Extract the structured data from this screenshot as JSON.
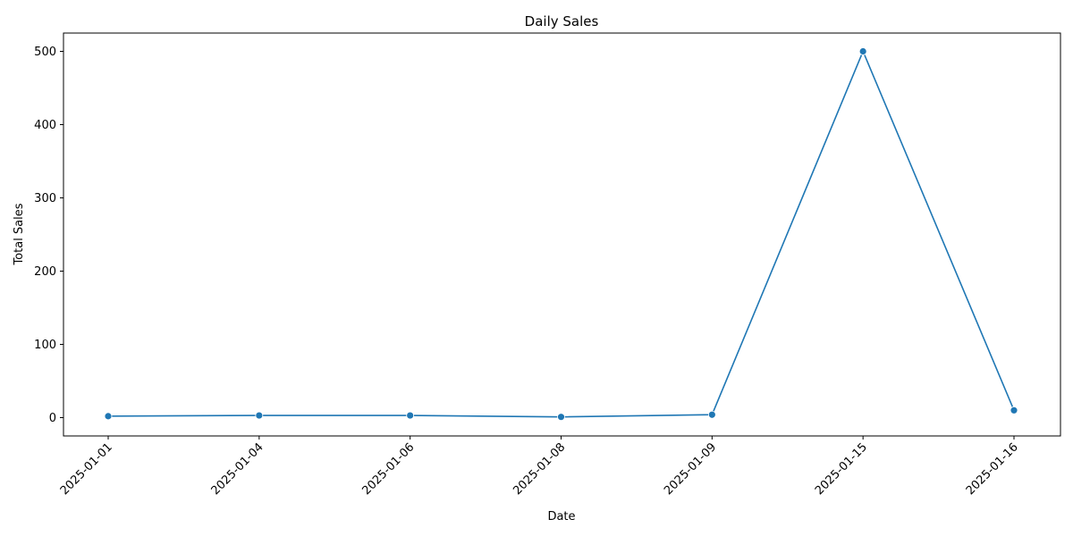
{
  "chart_data": {
    "type": "line",
    "title": "Daily Sales",
    "xlabel": "Date",
    "ylabel": "Total Sales",
    "categories": [
      "2025-01-01",
      "2025-01-04",
      "2025-01-06",
      "2025-01-08",
      "2025-01-09",
      "2025-01-15",
      "2025-01-16"
    ],
    "series": [
      {
        "values": [
          2,
          3,
          3,
          1,
          4,
          500,
          10
        ],
        "color": "#1f77b4",
        "marker": "circle"
      }
    ],
    "yticks": [
      0,
      100,
      200,
      300,
      400,
      500
    ],
    "ylim": [
      -25,
      525
    ],
    "grid": false,
    "legend": "none"
  }
}
